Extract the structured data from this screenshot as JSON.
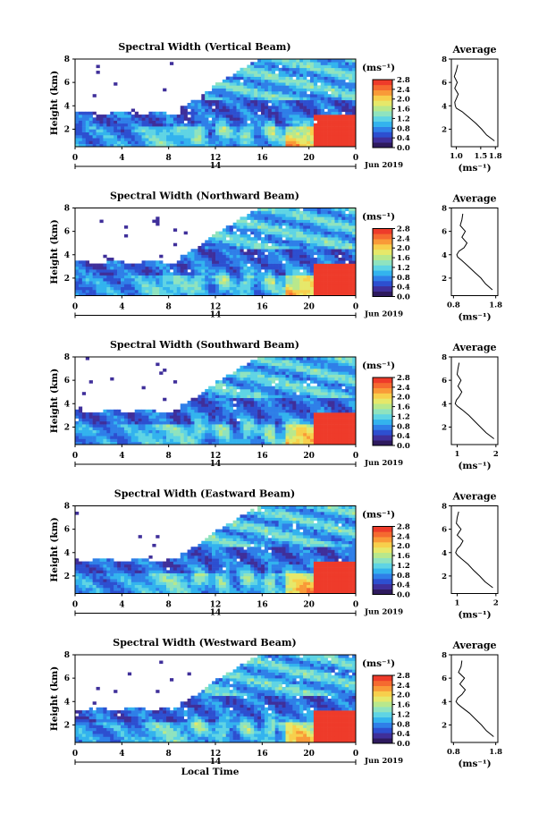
{
  "colors": {
    "scale": [
      "#2e1a5e",
      "#3f2f9a",
      "#2d4fd0",
      "#2f7fe8",
      "#33b3ee",
      "#5fd4e4",
      "#8fe3bf",
      "#b8e88c",
      "#e6e86a",
      "#f7cf4c",
      "#f99a38",
      "#f56a30",
      "#ee3b2a"
    ],
    "missing": "#ffffff"
  },
  "chart_data": [
    {
      "type": "heatmap",
      "title": "Spectral Width (Vertical Beam)",
      "xlabel": "",
      "ylabel": "Height (km)",
      "xticks": [
        "0",
        "4",
        "8",
        "12",
        "16",
        "20",
        "0"
      ],
      "xlim": [
        0,
        24
      ],
      "yticks": [
        "2",
        "4",
        "6",
        "8"
      ],
      "ylim": [
        0.5,
        8
      ],
      "day_label": "14",
      "date_label": "Jun 2019",
      "colorbar": {
        "unit": "(ms⁻¹)",
        "ticks": [
          "0.0",
          "0.4",
          "0.8",
          "1.2",
          "1.6",
          "2.0",
          "2.4",
          "2.8"
        ],
        "range": [
          0,
          2.8
        ]
      },
      "profile": {
        "title": "Average",
        "xlabel": "(ms⁻¹)",
        "xticks": [
          "1.0",
          "1.5",
          "1.8"
        ],
        "xlim": [
          0.9,
          1.85
        ],
        "yticks": [
          "2",
          "4",
          "6",
          "8"
        ],
        "ylim": [
          0.5,
          8
        ],
        "height": [
          1.0,
          1.5,
          2.0,
          2.5,
          3.0,
          3.5,
          3.8,
          4.0,
          4.3,
          4.6,
          5.0,
          5.5,
          6.0,
          6.5,
          7.0,
          7.5
        ],
        "width": [
          1.78,
          1.62,
          1.52,
          1.4,
          1.26,
          1.12,
          1.0,
          0.98,
          0.97,
          1.0,
          1.04,
          0.97,
          1.02,
          0.96,
          1.0,
          1.03
        ]
      }
    },
    {
      "type": "heatmap",
      "title": "Spectral Width (Northward Beam)",
      "xlabel": "",
      "ylabel": "Height (km)",
      "xticks": [
        "0",
        "4",
        "8",
        "12",
        "16",
        "20",
        "0"
      ],
      "xlim": [
        0,
        24
      ],
      "yticks": [
        "2",
        "4",
        "6",
        "8"
      ],
      "ylim": [
        0.5,
        8
      ],
      "day_label": "14",
      "date_label": "Jun 2019",
      "colorbar": {
        "unit": "(ms⁻¹)",
        "ticks": [
          "0.0",
          "0.4",
          "0.8",
          "1.2",
          "1.6",
          "2.0",
          "2.4",
          "2.8"
        ],
        "range": [
          0,
          2.8
        ]
      },
      "profile": {
        "title": "Average",
        "xlabel": "(ms⁻¹)",
        "xticks": [
          "0.8",
          "1.8"
        ],
        "xlim": [
          0.75,
          1.85
        ],
        "yticks": [
          "2",
          "4",
          "6",
          "8"
        ],
        "ylim": [
          0.5,
          8
        ],
        "height": [
          1.0,
          1.5,
          2.0,
          2.5,
          3.0,
          3.5,
          3.8,
          4.0,
          4.3,
          4.6,
          5.0,
          5.5,
          6.0,
          6.5,
          7.0,
          7.5
        ],
        "width": [
          1.72,
          1.56,
          1.45,
          1.3,
          1.15,
          1.0,
          0.9,
          0.88,
          0.93,
          1.05,
          1.12,
          1.0,
          1.08,
          0.96,
          1.0,
          1.02
        ]
      }
    },
    {
      "type": "heatmap",
      "title": "Spectral Width (Southward Beam)",
      "xlabel": "",
      "ylabel": "Height (km)",
      "xticks": [
        "0",
        "4",
        "8",
        "12",
        "16",
        "20",
        "0"
      ],
      "xlim": [
        0,
        24
      ],
      "yticks": [
        "2",
        "4",
        "6",
        "8"
      ],
      "ylim": [
        0.5,
        8
      ],
      "day_label": "14",
      "date_label": "Jun 2019",
      "colorbar": {
        "unit": "(ms⁻¹)",
        "ticks": [
          "0.0",
          "0.4",
          "0.8",
          "1.2",
          "1.6",
          "2.0",
          "2.4",
          "2.8"
        ],
        "range": [
          0,
          2.8
        ]
      },
      "profile": {
        "title": "Average",
        "xlabel": "(ms⁻¹)",
        "xticks": [
          "1",
          "2"
        ],
        "xlim": [
          0.85,
          2.05
        ],
        "yticks": [
          "2",
          "4",
          "6",
          "8"
        ],
        "ylim": [
          0.5,
          8
        ],
        "height": [
          1.0,
          1.5,
          2.0,
          2.5,
          3.0,
          3.5,
          3.8,
          4.0,
          4.3,
          4.6,
          5.0,
          5.5,
          6.0,
          6.5,
          7.0,
          7.5
        ],
        "width": [
          1.95,
          1.75,
          1.6,
          1.45,
          1.3,
          1.12,
          1.0,
          0.95,
          0.98,
          1.05,
          1.12,
          1.02,
          1.1,
          1.0,
          1.02,
          1.05
        ]
      }
    },
    {
      "type": "heatmap",
      "title": "Spectral Width (Eastward Beam)",
      "xlabel": "",
      "ylabel": "Height (km)",
      "xticks": [
        "0",
        "4",
        "8",
        "12",
        "16",
        "20",
        "0"
      ],
      "xlim": [
        0,
        24
      ],
      "yticks": [
        "2",
        "4",
        "6",
        "8"
      ],
      "ylim": [
        0.5,
        8
      ],
      "day_label": "14",
      "date_label": "Jun 2019",
      "colorbar": {
        "unit": "(ms⁻¹)",
        "ticks": [
          "0.0",
          "0.4",
          "0.8",
          "1.2",
          "1.6",
          "2.0",
          "2.4",
          "2.8"
        ],
        "range": [
          0,
          2.8
        ]
      },
      "profile": {
        "title": "Average",
        "xlabel": "(ms⁻¹)",
        "xticks": [
          "1",
          "2"
        ],
        "xlim": [
          0.85,
          2.05
        ],
        "yticks": [
          "2",
          "4",
          "6",
          "8"
        ],
        "ylim": [
          0.5,
          8
        ],
        "height": [
          1.0,
          1.5,
          2.0,
          2.5,
          3.0,
          3.5,
          3.8,
          4.0,
          4.3,
          4.6,
          5.0,
          5.5,
          6.0,
          6.5,
          7.0,
          7.5
        ],
        "width": [
          1.92,
          1.72,
          1.58,
          1.42,
          1.28,
          1.1,
          1.0,
          0.96,
          1.0,
          1.08,
          1.15,
          1.0,
          1.1,
          0.98,
          1.0,
          1.04
        ]
      }
    },
    {
      "type": "heatmap",
      "title": "Spectral Width (Westward Beam)",
      "xlabel": "Local Time",
      "ylabel": "Height (km)",
      "xticks": [
        "0",
        "4",
        "8",
        "12",
        "16",
        "20",
        "0"
      ],
      "xlim": [
        0,
        24
      ],
      "yticks": [
        "2",
        "4",
        "6",
        "8"
      ],
      "ylim": [
        0.5,
        8
      ],
      "day_label": "14",
      "date_label": "Jun 2019",
      "colorbar": {
        "unit": "(ms⁻¹)",
        "ticks": [
          "0.0",
          "0.4",
          "0.8",
          "1.2",
          "1.6",
          "2.0",
          "2.4",
          "2.8"
        ],
        "range": [
          0,
          2.8
        ]
      },
      "profile": {
        "title": "Average",
        "xlabel": "(ms⁻¹)",
        "xticks": [
          "0.8",
          "1.8"
        ],
        "xlim": [
          0.75,
          1.85
        ],
        "yticks": [
          "2",
          "4",
          "6",
          "8"
        ],
        "ylim": [
          0.5,
          8
        ],
        "height": [
          1.0,
          1.5,
          2.0,
          2.5,
          3.0,
          3.5,
          3.8,
          4.0,
          4.3,
          4.6,
          5.0,
          5.5,
          6.0,
          6.5,
          7.0,
          7.5
        ],
        "width": [
          1.75,
          1.58,
          1.46,
          1.32,
          1.18,
          1.0,
          0.9,
          0.86,
          0.9,
          1.0,
          1.08,
          0.95,
          1.06,
          0.92,
          0.98,
          1.0
        ]
      }
    }
  ]
}
